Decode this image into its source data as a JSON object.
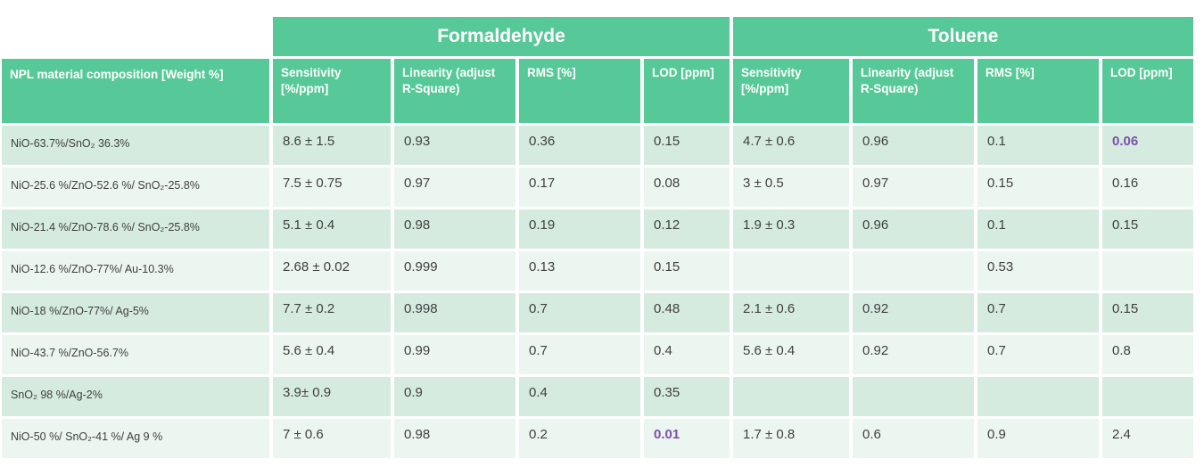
{
  "chart_data": {
    "type": "table",
    "column_groups": [
      {
        "label": "Formaldehyde"
      },
      {
        "label": "Toluene"
      }
    ],
    "material_header": "NPL material composition [Weight %]",
    "sub_headers": [
      "Sensitivity [%/ppm]",
      "Linearity (adjust R-Square)",
      "RMS [%]",
      "LOD [ppm]"
    ],
    "column_keys": [
      "f-sensitivity",
      "f-linearity",
      "f-rms",
      "f-lod",
      "t-sensitivity",
      "t-linearity",
      "t-rms",
      "t-lod"
    ],
    "rows": [
      {
        "material": "NiO-63.7%/SnO₂ 36.3%",
        "values": [
          "8.6 ± 1.5",
          "0.93",
          "0.36",
          "0.15",
          "4.7 ± 0.6",
          "0.96",
          "0.1",
          "0.06"
        ],
        "highlights": [
          7
        ]
      },
      {
        "material": "NiO-25.6 %/ZnO-52.6 %/ SnO₂-25.8%",
        "values": [
          "7.5 ± 0.75",
          "0.97",
          "0.17",
          "0.08",
          "3 ± 0.5",
          "0.97",
          "0.15",
          "0.16"
        ],
        "highlights": []
      },
      {
        "material": "NiO-21.4 %/ZnO-78.6 %/ SnO₂-25.8%",
        "values": [
          "5.1 ± 0.4",
          "0.98",
          "0.19",
          "0.12",
          "1.9 ± 0.3",
          "0.96",
          "0.1",
          "0.15"
        ],
        "highlights": []
      },
      {
        "material": "NiO-12.6 %/ZnO-77%/ Au-10.3%",
        "values": [
          "2.68 ± 0.02",
          "0.999",
          "0.13",
          "0.15",
          "",
          "",
          "0.53",
          ""
        ],
        "highlights": []
      },
      {
        "material": "NiO-18 %/ZnO-77%/ Ag-5%",
        "values": [
          "7.7 ± 0.2",
          "0.998",
          "0.7",
          "0.48",
          "2.1 ± 0.6",
          "0.92",
          "0.7",
          "0.15"
        ],
        "highlights": []
      },
      {
        "material": "NiO-43.7 %/ZnO-56.7%",
        "values": [
          "5.6 ± 0.4",
          "0.99",
          "0.7",
          "0.4",
          "5.6 ± 0.4",
          "0.92",
          "0.7",
          "0.8"
        ],
        "highlights": []
      },
      {
        "material": "SnO₂ 98 %/Ag-2%",
        "values": [
          "3.9± 0.9",
          "0.9",
          "0.4",
          "0.35",
          "",
          "",
          "",
          ""
        ],
        "highlights": []
      },
      {
        "material": "NiO-50 %/ SnO₂-41 %/ Ag 9 %",
        "values": [
          "7 ± 0.6",
          "0.98",
          "0.2",
          "0.01",
          "1.7 ± 0.8",
          "0.6",
          "0.9",
          "2.4"
        ],
        "highlights": [
          3
        ]
      }
    ]
  },
  "colors": {
    "header_green": "#57C998",
    "stripe_dark": "#D6EBE0",
    "stripe_light": "#ECF6F0",
    "text": "#3F3F3F",
    "highlight_purple": "#7B52A8"
  }
}
